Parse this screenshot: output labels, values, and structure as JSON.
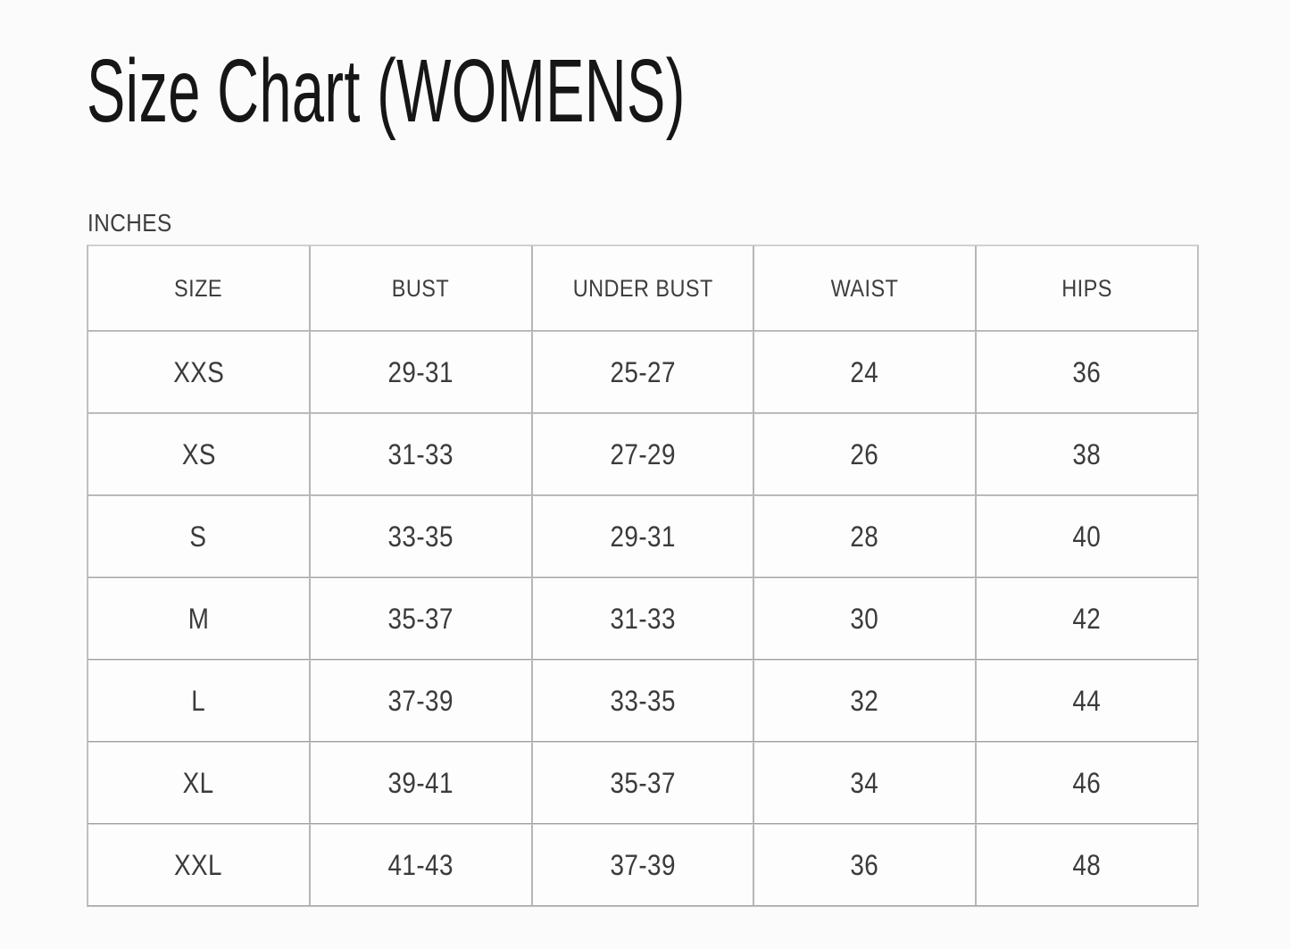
{
  "page": {
    "title": "Size Chart (WOMENS)",
    "unit_label": "INCHES"
  },
  "size_table": {
    "columns": [
      "SIZE",
      "BUST",
      "UNDER BUST",
      "WAIST",
      "HIPS"
    ],
    "rows": [
      [
        "XXS",
        "29-31",
        "25-27",
        "24",
        "36"
      ],
      [
        "XS",
        "31-33",
        "27-29",
        "26",
        "38"
      ],
      [
        "S",
        "33-35",
        "29-31",
        "28",
        "40"
      ],
      [
        "M",
        "35-37",
        "31-33",
        "30",
        "42"
      ],
      [
        "L",
        "37-39",
        "33-35",
        "32",
        "44"
      ],
      [
        "XL",
        "39-41",
        "35-37",
        "34",
        "46"
      ],
      [
        "XXL",
        "41-43",
        "37-39",
        "36",
        "48"
      ]
    ]
  },
  "colors": {
    "background": "#fbfbfb",
    "title_text": "#161616",
    "body_text": "#3b3b3b",
    "border_dark": "#9e9e9e",
    "border_light": "#d9d9d9"
  }
}
